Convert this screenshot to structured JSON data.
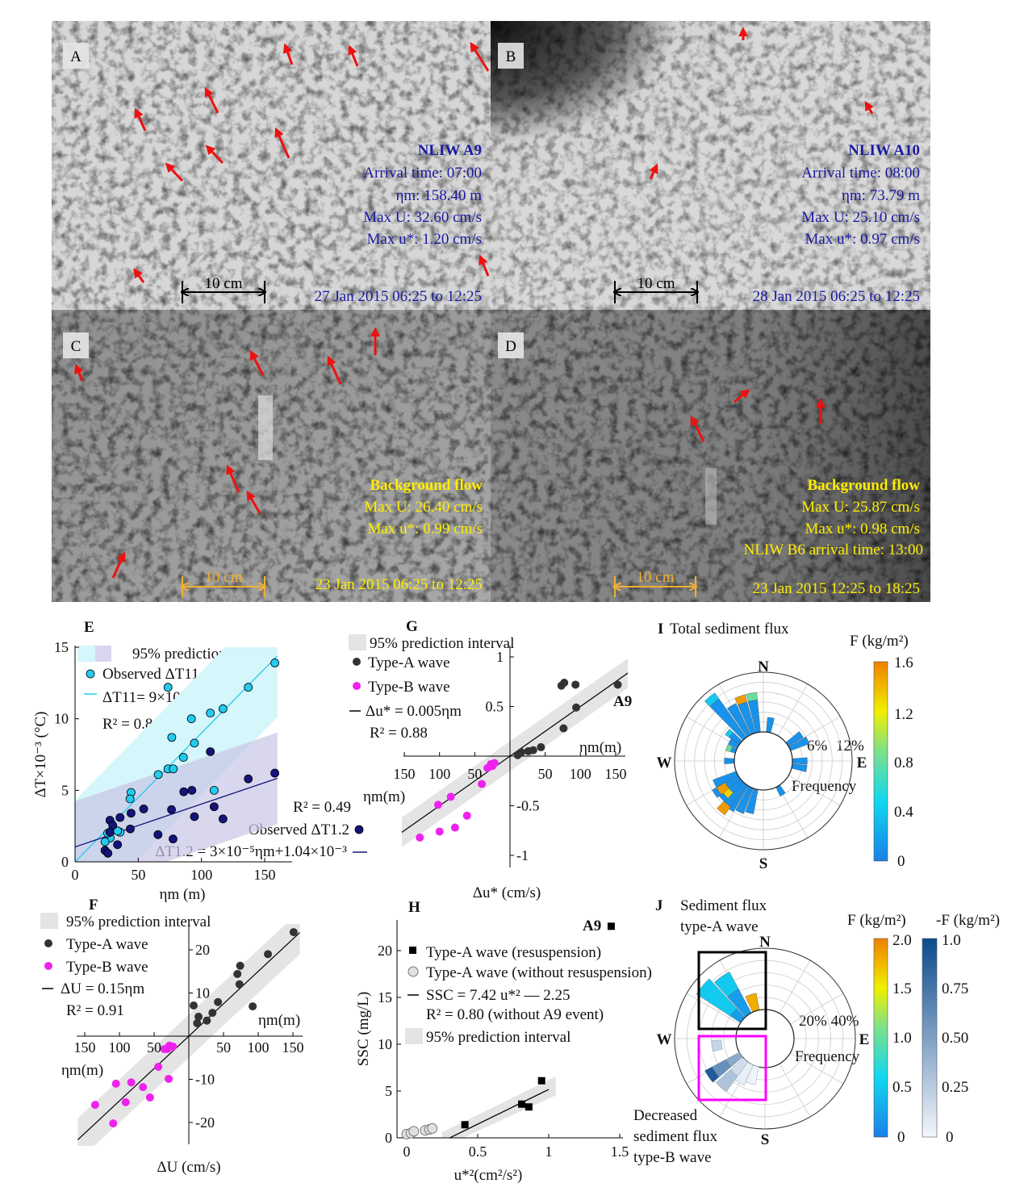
{
  "photos": {
    "A": {
      "label": "A",
      "title": "NLIW A9",
      "lines": [
        "Arrival time: 07:00",
        "ηm: 158.40 m",
        "Max U: 32.60 cm/s",
        "Max u*: 1.20 cm/s"
      ],
      "date": "27 Jan 2015 06:25 to 12:25",
      "scale": "10 cm"
    },
    "B": {
      "label": "B",
      "title": "NLIW A10",
      "lines": [
        "Arrival time: 08:00",
        "ηm: 73.79 m",
        "Max U: 25.10 cm/s",
        "Max u*: 0.97 cm/s"
      ],
      "date": "28 Jan 2015 06:25 to 12:25",
      "scale": "10 cm"
    },
    "C": {
      "label": "C",
      "title": "Background flow",
      "lines": [
        "Max U: 26.40 cm/s",
        "Max u*: 0.99 cm/s"
      ],
      "date": "23 Jan 2015 06:25 to 12:25",
      "scale": "10 cm"
    },
    "D": {
      "label": "D",
      "title": "Background flow",
      "lines": [
        "Max U: 25.87 cm/s",
        "Max u*: 0.98 cm/s",
        "NLIW B6 arrival time: 13:00"
      ],
      "date": "23 Jan 2015 12:25 to 18:25",
      "scale": "10 cm"
    }
  },
  "colors": {
    "arrow": "#ee1111",
    "photo_text_ab": "#1a1aa0",
    "photo_text_cd": "#ffee00",
    "scale_ab": "#000000",
    "scale_cd": "#f0b030",
    "cyan": "#22ccee",
    "navy": "#14147a",
    "typeA": "#333333",
    "typeB": "#ee22ee",
    "magenta": "#ff00ff"
  },
  "chart_data": [
    {
      "id": "E",
      "type": "scatter",
      "panel_label": "E",
      "xlabel": "ηm (m)",
      "ylabel": "ΔT×10⁻³ (°C)",
      "xlim": [
        0,
        160
      ],
      "ylim": [
        0,
        15
      ],
      "xticks": [
        "0",
        "50",
        "100",
        "150"
      ],
      "yticks": [
        "0",
        "5",
        "10",
        "15"
      ],
      "legend": {
        "band": "95% prediction interval",
        "obs11": "Observed ΔT11",
        "fit11": "ΔT11= 9×10⁻⁵ηm",
        "r11": "R² = 0.80",
        "r12": "R² = 0.49",
        "obs12": "Observed ΔT1.2",
        "fit12": "ΔT1.2 = 3×10⁻⁵ηm+1.04×10⁻³"
      },
      "series": [
        {
          "name": "Observed ΔT11",
          "fit": {
            "slope": 0.09,
            "intercept": 0,
            "band": 4.3
          },
          "points": [
            [
              73.5,
              12.2
            ],
            [
              158,
              13.9
            ],
            [
              137,
              12.2
            ],
            [
              117,
              10.7
            ],
            [
              107,
              10.4
            ],
            [
              92,
              10.0
            ],
            [
              76.5,
              8.7
            ],
            [
              94.4,
              8.3
            ],
            [
              85.7,
              7.3
            ],
            [
              73.5,
              6.5
            ],
            [
              77.7,
              6.5
            ],
            [
              65.8,
              6.1
            ],
            [
              110,
              5.0
            ],
            [
              44.3,
              4.85
            ],
            [
              43.5,
              4.4
            ],
            [
              35.6,
              2.07
            ],
            [
              33.6,
              2.16
            ],
            [
              27.8,
              1.67
            ],
            [
              25.8,
              2.0
            ],
            [
              23.7,
              1.4
            ]
          ]
        },
        {
          "name": "Observed ΔT1.2",
          "fit": {
            "slope": 0.03,
            "intercept": 1.04,
            "band": 3.2
          },
          "points": [
            [
              158,
              6.2
            ],
            [
              137,
              5.8
            ],
            [
              107,
              7.7
            ],
            [
              86,
              4.9
            ],
            [
              92.4,
              5.0
            ],
            [
              54.3,
              3.7
            ],
            [
              76.3,
              3.65
            ],
            [
              94.4,
              3.16
            ],
            [
              110,
              3.85
            ],
            [
              117,
              3.0
            ],
            [
              44.3,
              3.4
            ],
            [
              35.6,
              3.1
            ],
            [
              43.7,
              2.3
            ],
            [
              27.6,
              2.9
            ],
            [
              29.8,
              2.55
            ],
            [
              27.6,
              2.07
            ],
            [
              65.6,
              1.9
            ],
            [
              77.5,
              1.6
            ],
            [
              33.6,
              1.2
            ],
            [
              23.7,
              0.8
            ],
            [
              26,
              0.6
            ]
          ]
        }
      ]
    },
    {
      "id": "F",
      "type": "scatter",
      "panel_label": "F",
      "xlabel": "ΔU (cm/s)",
      "axis_note": "ηm(m)",
      "xlim": [
        -160,
        160
      ],
      "ylim": [
        -25,
        25
      ],
      "xticks_left": [
        "150",
        "100",
        "50"
      ],
      "xticks_right": [
        "50",
        "100",
        "150"
      ],
      "yticks_pos": [
        "20",
        "10"
      ],
      "yticks_neg": [
        "-10",
        "-20"
      ],
      "legend": {
        "band": "95% prediction interval",
        "a": "Type-A wave",
        "b": "Type-B wave",
        "fit": "ΔU = 0.15ηm",
        "r2": "R² = 0.91"
      },
      "fit": {
        "slope": 0.15,
        "intercept": 0,
        "band": 5
      },
      "series": [
        {
          "name": "Type-A wave",
          "points": [
            [
              151,
              24.1
            ],
            [
              114,
              19
            ],
            [
              74,
              16.3
            ],
            [
              70,
              14.4
            ],
            [
              73,
              12
            ],
            [
              92,
              6.9
            ],
            [
              7,
              7.1
            ],
            [
              14,
              4.5
            ],
            [
              12,
              3
            ],
            [
              26,
              3.6
            ],
            [
              34,
              5.4
            ],
            [
              42,
              7.9
            ]
          ]
        },
        {
          "name": "Type-B wave",
          "points": [
            [
              -28,
              -2.2
            ],
            [
              -23,
              -2.4
            ],
            [
              -31,
              -3
            ],
            [
              -35,
              -3
            ],
            [
              -44,
              -7.1
            ],
            [
              -29,
              -9.9
            ],
            [
              -83,
              -10.7
            ],
            [
              -105,
              -11
            ],
            [
              -66,
              -11.8
            ],
            [
              -91,
              -15.3
            ],
            [
              -135,
              -15.9
            ],
            [
              -56,
              -14.2
            ],
            [
              -109,
              -20.2
            ]
          ]
        }
      ]
    },
    {
      "id": "G",
      "type": "scatter",
      "panel_label": "G",
      "xlabel": "Δu* (cm/s)",
      "axis_note": "ηm(m)",
      "xlim": [
        -160,
        160
      ],
      "ylim": [
        -1,
        1
      ],
      "xticks_left": [
        "150",
        "100",
        "50"
      ],
      "xticks_right": [
        "50",
        "100",
        "150"
      ],
      "yticks_pos": [
        "1",
        "0.5"
      ],
      "yticks_neg": [
        "-0.5",
        "-1"
      ],
      "legend": {
        "band": "95% prediction interval",
        "a": "Type-A wave",
        "b": "Type-B wave",
        "fit": "Δu* = 0.005ηm",
        "r2": "R² = 0.88",
        "a9": "A9"
      },
      "fit": {
        "slope": 0.005,
        "intercept": 0,
        "band": 0.15
      },
      "series": [
        {
          "name": "Type-A wave",
          "points": [
            [
              153,
              0.72
            ],
            [
              73,
              0.71
            ],
            [
              77,
              0.74
            ],
            [
              93,
              0.72
            ],
            [
              94,
              0.49
            ],
            [
              76,
              0.28
            ],
            [
              44,
              0.09
            ],
            [
              33,
              0.06
            ],
            [
              26,
              0.05
            ],
            [
              16,
              0.04
            ],
            [
              11,
              0.01
            ]
          ]
        },
        {
          "name": "Type-B wave",
          "points": [
            [
              -22,
              -0.07
            ],
            [
              -27,
              -0.08
            ],
            [
              -25,
              -0.1
            ],
            [
              -32,
              -0.12
            ],
            [
              -40,
              -0.28
            ],
            [
              -61,
              -0.6
            ],
            [
              -84,
              -0.41
            ],
            [
              -102,
              -0.49
            ],
            [
              -78,
              -0.72
            ],
            [
              -100,
              -0.76
            ],
            [
              -128,
              -0.82
            ]
          ]
        }
      ]
    },
    {
      "id": "H",
      "type": "scatter",
      "panel_label": "H",
      "xlabel": "u*²(cm²/s²)",
      "ylabel": "SSC (mg/L)",
      "xlim": [
        -0.07,
        1.5
      ],
      "ylim": [
        0,
        23
      ],
      "xticks": [
        "0",
        "0.5",
        "1",
        "1.5"
      ],
      "yticks": [
        "0",
        "5",
        "10",
        "15",
        "20"
      ],
      "legend": {
        "res": "Type-A wave (resuspension)",
        "nores": "Type-A wave (without resuspension)",
        "fit": "SSC = 7.42 u*² — 2.25",
        "r2": "R² = 0.80 (without A9 event)",
        "band": "95% prediction interval",
        "a9": "A9"
      },
      "fit": {
        "slope": 7.42,
        "intercept": -2.25,
        "band": 1.0,
        "xrange": [
          0.25,
          1.05
        ]
      },
      "series": [
        {
          "name": "Type-A wave (resuspension)",
          "points": [
            [
              0.41,
              1.4
            ],
            [
              0.81,
              3.6
            ],
            [
              0.86,
              3.3
            ],
            [
              0.95,
              6.1
            ],
            [
              1.44,
              22.6
            ]
          ]
        },
        {
          "name": "Type-A wave (without resuspension)",
          "points": [
            [
              0,
              0.4
            ],
            [
              0.03,
              0.5
            ],
            [
              0.05,
              0.7
            ],
            [
              0.13,
              0.8
            ],
            [
              0.16,
              0.9
            ],
            [
              0.18,
              1.0
            ]
          ]
        }
      ]
    },
    {
      "id": "I",
      "type": "polar-bar",
      "panel_label": "I",
      "title": "Total sediment flux",
      "compass": [
        "N",
        "E",
        "S",
        "W"
      ],
      "rlabels": [
        "0",
        "6%",
        "12%"
      ],
      "rlabel_title": "Frequency",
      "rmax": 12,
      "colorbar": {
        "title": "F (kg/m²)",
        "ticks": [
          "1.6",
          "1.2",
          "0.8",
          "0.4",
          "0"
        ],
        "range": [
          0,
          1.6
        ]
      },
      "bars": [
        {
          "dir": 320,
          "segments": [
            [
              0,
              9.5,
              0.1
            ],
            [
              9.5,
              11,
              0.4
            ]
          ]
        },
        {
          "dir": 330,
          "segments": [
            [
              0,
              7,
              0.1
            ]
          ]
        },
        {
          "dir": 340,
          "segments": [
            [
              0,
              6.5,
              0.1
            ],
            [
              6.5,
              8,
              1.5
            ]
          ]
        },
        {
          "dir": 350,
          "segments": [
            [
              0,
              6.5,
              0.1
            ],
            [
              6.5,
              8,
              0.8
            ]
          ]
        },
        {
          "dir": 10,
          "segments": [
            [
              0,
              3,
              0.1
            ]
          ]
        },
        {
          "dir": 55,
          "segments": [
            [
              0,
              3.5,
              0.1
            ]
          ]
        },
        {
          "dir": 65,
          "segments": [
            [
              0,
              4,
              0.1
            ]
          ]
        },
        {
          "dir": 90,
          "segments": [
            [
              0,
              3,
              0.1
            ]
          ]
        },
        {
          "dir": 100,
          "segments": [
            [
              0,
              3,
              0.1
            ]
          ]
        },
        {
          "dir": 150,
          "segments": [
            [
              0,
              2,
              0.1
            ]
          ]
        },
        {
          "dir": 195,
          "segments": [
            [
              0,
              5,
              0.1
            ]
          ]
        },
        {
          "dir": 205,
          "segments": [
            [
              0,
              5.5,
              0.1
            ]
          ]
        },
        {
          "dir": 215,
          "segments": [
            [
              0,
              6,
              0.1
            ]
          ]
        },
        {
          "dir": 220,
          "segments": [
            [
              0,
              5.5,
              0.1
            ],
            [
              5.5,
              7.5,
              1.5
            ]
          ]
        },
        {
          "dir": 228,
          "segments": [
            [
              0,
              3,
              0.1
            ],
            [
              3,
              4.5,
              1.3
            ],
            [
              4.5,
              5.5,
              0.1
            ]
          ]
        },
        {
          "dir": 236,
          "segments": [
            [
              0,
              3,
              0.1
            ],
            [
              3,
              5,
              1.5
            ],
            [
              5,
              6,
              0.1
            ]
          ]
        },
        {
          "dir": 245,
          "segments": [
            [
              0,
              5,
              0.1
            ]
          ]
        },
        {
          "dir": 270,
          "segments": [
            [
              0,
              2,
              0.1
            ]
          ]
        },
        {
          "dir": 290,
          "segments": [
            [
              0,
              1,
              0.1
            ],
            [
              1,
              2,
              0.8
            ]
          ]
        },
        {
          "dir": 300,
          "segments": [
            [
              0,
              2,
              0.1
            ]
          ]
        },
        {
          "dir": 309,
          "segments": [
            [
              0,
              2.5,
              0.1
            ],
            [
              2.5,
              3.5,
              0.4
            ]
          ]
        }
      ]
    },
    {
      "id": "J",
      "type": "polar-bar",
      "panel_label": "J",
      "title": [
        "Sediment flux",
        "type-A wave"
      ],
      "compass": [
        "N",
        "E",
        "S",
        "W"
      ],
      "rlabels": [
        "0",
        "20% 40%"
      ],
      "rlabel_title": "Frequency",
      "rmax": 50,
      "annotation": [
        "Decreased",
        "sediment flux",
        "type-B wave"
      ],
      "colorbar": {
        "title": "F (kg/m²)",
        "ticks": [
          "2.0",
          "1.5",
          "1.0",
          "0.5",
          "0"
        ],
        "range": [
          0,
          2
        ]
      },
      "colorbar_neg": {
        "title": "-F (kg/m²)",
        "ticks": [
          "1.0",
          "0.75",
          "0.50",
          "0.25",
          "0"
        ],
        "range": [
          0,
          1
        ]
      },
      "bars_typeA": [
        {
          "dir": 310,
          "segments": [
            [
              0,
              10,
              0.2
            ],
            [
              10,
              43,
              0.5
            ]
          ]
        },
        {
          "dir": 325,
          "segments": [
            [
              0,
              22,
              0.2
            ],
            [
              22,
              38,
              0.5
            ]
          ]
        },
        {
          "dir": 342,
          "segments": [
            [
              0,
              14,
              1.8
            ]
          ]
        }
      ],
      "bars_typeB": [
        {
          "dir": 262,
          "segments": [
            [
              12,
              20,
              0.2
            ]
          ]
        },
        {
          "dir": 236,
          "segments": [
            [
              0,
              12,
              0.45
            ],
            [
              12,
              25,
              0.6
            ],
            [
              25,
              32,
              0.9
            ]
          ]
        },
        {
          "dir": 222,
          "segments": [
            [
              0,
              14,
              0.15
            ],
            [
              14,
              30,
              0.3
            ]
          ]
        },
        {
          "dir": 210,
          "segments": [
            [
              0,
              18,
              0.05
            ]
          ]
        },
        {
          "dir": 198,
          "segments": [
            [
              0,
              15,
              0.02
            ]
          ]
        }
      ]
    }
  ]
}
